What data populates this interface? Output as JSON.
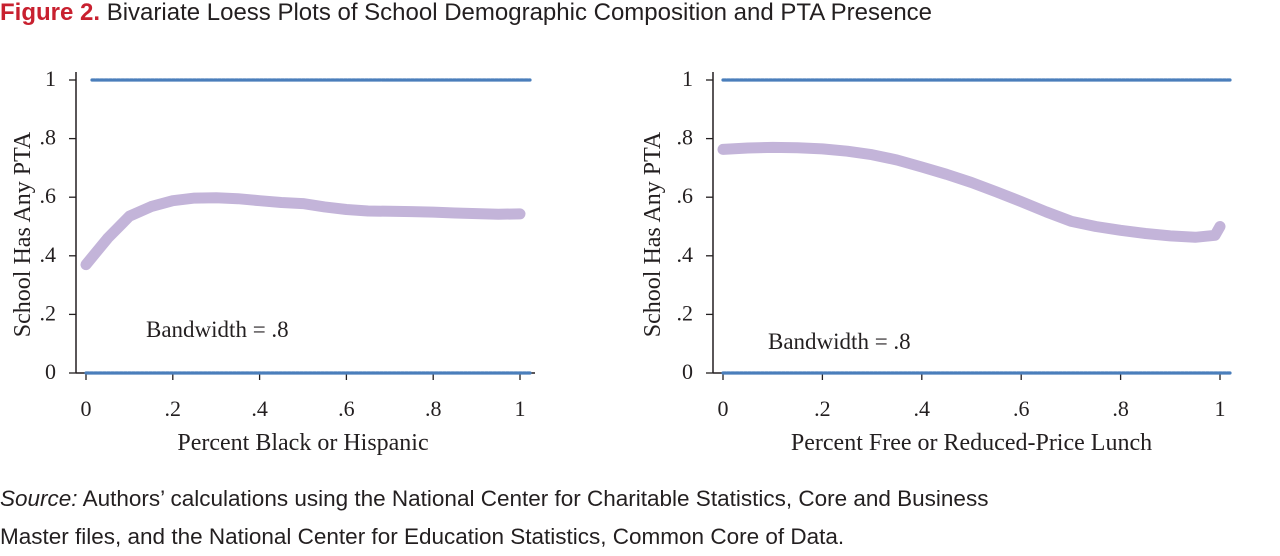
{
  "figure": {
    "label": "Figure 2.",
    "title": "Bivariate Loess Plots of School Demographic Composition and PTA Presence"
  },
  "source": {
    "label": "Source:",
    "text_line1": "Authors’ calculations using the National Center for Charitable Statistics, Core and Business",
    "text_line2": "Master files, and the National Center for Education Statistics, Common Core of Data."
  },
  "colors": {
    "points": "#4a7ebb",
    "loess": "#c3b4d9",
    "axis": "#231f20"
  },
  "chart_data": [
    {
      "type": "scatter",
      "subtype": "loess",
      "xlabel": "Percent Black or Hispanic",
      "ylabel": "School Has Any PTA",
      "annotation": "Bandwidth = .8",
      "xlim": [
        0,
        1
      ],
      "ylim": [
        0,
        1
      ],
      "xticks": [
        0,
        0.2,
        0.4,
        0.6,
        0.8,
        1
      ],
      "xtick_labels": [
        "0",
        ".2",
        ".4",
        ".6",
        ".8",
        "1"
      ],
      "yticks": [
        0,
        0.2,
        0.4,
        0.6,
        0.8,
        1
      ],
      "ytick_labels": [
        "0",
        ".2",
        ".4",
        ".6",
        ".8",
        "1"
      ],
      "points": {
        "y_values": [
          0,
          1
        ],
        "x_range": [
          0,
          1
        ],
        "note": "binary outcome, points drawn at y=0 and y=1 across x range"
      },
      "series": [
        {
          "name": "loess",
          "x": [
            0,
            0.05,
            0.1,
            0.15,
            0.2,
            0.25,
            0.3,
            0.35,
            0.4,
            0.45,
            0.5,
            0.55,
            0.6,
            0.65,
            0.7,
            0.75,
            0.8,
            0.85,
            0.9,
            0.95,
            1.0
          ],
          "y": [
            0.37,
            0.46,
            0.535,
            0.568,
            0.588,
            0.597,
            0.598,
            0.595,
            0.588,
            0.582,
            0.578,
            0.567,
            0.558,
            0.553,
            0.552,
            0.551,
            0.549,
            0.546,
            0.544,
            0.542,
            0.543
          ]
        }
      ]
    },
    {
      "type": "scatter",
      "subtype": "loess",
      "xlabel": "Percent Free or Reduced-Price Lunch",
      "ylabel": "School Has Any PTA",
      "annotation": "Bandwidth = .8",
      "xlim": [
        0,
        1
      ],
      "ylim": [
        0,
        1
      ],
      "xticks": [
        0,
        0.2,
        0.4,
        0.6,
        0.8,
        1
      ],
      "xtick_labels": [
        "0",
        ".2",
        ".4",
        ".6",
        ".8",
        "1"
      ],
      "yticks": [
        0,
        0.2,
        0.4,
        0.6,
        0.8,
        1
      ],
      "ytick_labels": [
        "0",
        ".2",
        ".4",
        ".6",
        ".8",
        "1"
      ],
      "points": {
        "y_values": [
          0,
          1
        ],
        "x_range": [
          0,
          1
        ],
        "note": "binary outcome, points drawn at y=0 and y=1 across x range"
      },
      "series": [
        {
          "name": "loess",
          "x": [
            0,
            0.05,
            0.1,
            0.15,
            0.2,
            0.25,
            0.3,
            0.35,
            0.4,
            0.45,
            0.5,
            0.55,
            0.6,
            0.65,
            0.7,
            0.75,
            0.8,
            0.85,
            0.9,
            0.95,
            0.99,
            1.0
          ],
          "y": [
            0.763,
            0.768,
            0.77,
            0.769,
            0.765,
            0.757,
            0.745,
            0.727,
            0.703,
            0.678,
            0.65,
            0.618,
            0.585,
            0.55,
            0.518,
            0.5,
            0.487,
            0.476,
            0.468,
            0.463,
            0.47,
            0.5
          ]
        }
      ]
    }
  ]
}
